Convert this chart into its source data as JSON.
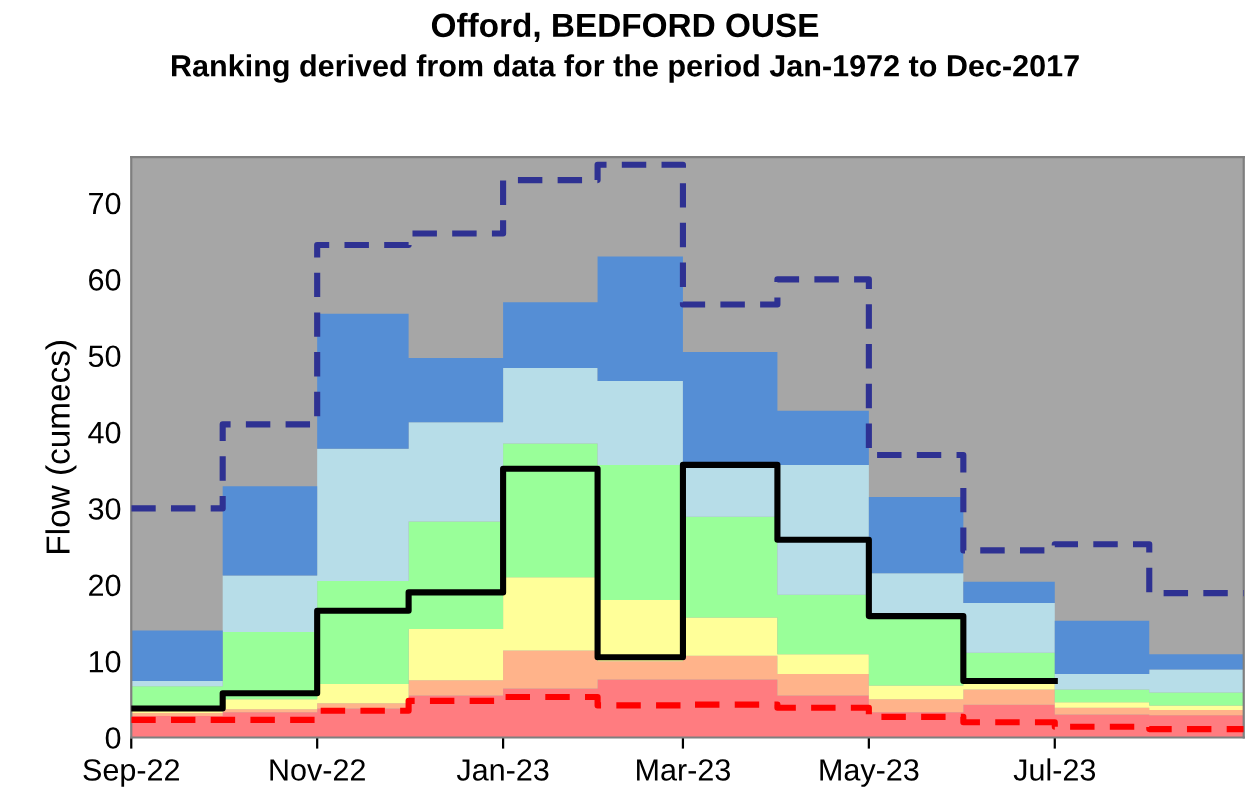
{
  "chart_data": {
    "type": "area",
    "title": "Offord, BEDFORD OUSE",
    "subtitle": "Ranking derived from data for the period Jan-1972 to Dec-2017",
    "ylabel": "Flow (cumecs)",
    "stacked": true,
    "x": [
      "2022-09",
      "2022-10",
      "2022-11",
      "2022-12",
      "2023-01",
      "2023-02",
      "2023-03",
      "2023-04",
      "2023-05",
      "2023-06",
      "2023-07",
      "2023-08",
      "2023-09"
    ],
    "series": [
      {
        "color": "#ff7c80",
        "values": [
          2.8,
          3.3,
          3.8,
          5.5,
          6.4,
          7.6,
          7.6,
          5.5,
          3.3,
          4.3,
          3.0,
          2.9,
          2.9
        ]
      },
      {
        "color": "#ffb38a",
        "values": [
          0.4,
          0.4,
          0.7,
          2.0,
          5.0,
          2.4,
          3.1,
          2.8,
          1.7,
          2.0,
          0.9,
          0.7,
          0.7
        ]
      },
      {
        "color": "#ffff99",
        "values": [
          0.4,
          1.3,
          2.5,
          6.7,
          9.6,
          8.0,
          5.0,
          2.6,
          1.8,
          1.3,
          0.7,
          0.6,
          0.6
        ]
      },
      {
        "color": "#99ff99",
        "values": [
          3.1,
          8.8,
          13.5,
          14.1,
          17.5,
          17.7,
          13.2,
          7.8,
          9.1,
          3.5,
          1.7,
          1.7,
          1.7
        ]
      },
      {
        "color": "#b7dde8",
        "values": [
          0.7,
          7.4,
          17.3,
          13.0,
          9.9,
          11.0,
          6.8,
          17.0,
          5.6,
          6.5,
          2.0,
          3.0,
          3.0
        ]
      },
      {
        "color": "#558ed5",
        "values": [
          6.6,
          11.7,
          17.7,
          8.4,
          8.6,
          16.3,
          14.8,
          7.1,
          10.0,
          2.8,
          7.0,
          2.0,
          2.0
        ]
      },
      {
        "type": "step",
        "color": "#000000",
        "line_style": "solid",
        "x": [
          "2022-09",
          "2022-10",
          "2022-11",
          "2022-12",
          "2023-01",
          "2023-02",
          "2023-03",
          "2023-04",
          "2023-05",
          "2023-06",
          "2023-07"
        ],
        "values": [
          3.8,
          5.8,
          16.6,
          19.0,
          35.2,
          10.5,
          35.7,
          25.9,
          15.9,
          7.4,
          7.4
        ]
      },
      {
        "type": "step",
        "color": "#ff0000",
        "line_style": "dashed",
        "values": [
          2.3,
          2.3,
          3.5,
          4.8,
          5.3,
          4.2,
          4.3,
          3.9,
          2.7,
          2.0,
          1.4,
          1.1,
          1.1
        ]
      },
      {
        "type": "step",
        "color": "#2e3192",
        "line_style": "dashed",
        "values": [
          30,
          41,
          64.5,
          66,
          73,
          75,
          56.7,
          60,
          37,
          24.5,
          25.3,
          18.9,
          18.9
        ]
      }
    ],
    "bands": [
      {
        "axis": "y",
        "from": 0,
        "to": 76,
        "color": "#a6a6a6"
      }
    ],
    "xlim": [
      "2022-09",
      "2023-09"
    ],
    "xticks": [
      {
        "value": "2022-09",
        "label": "Sep-22"
      },
      {
        "value": "2022-11",
        "label": "Nov-22"
      },
      {
        "value": "2023-01",
        "label": "Jan-23"
      },
      {
        "value": "2023-03",
        "label": "Mar-23"
      },
      {
        "value": "2023-05",
        "label": "May-23"
      },
      {
        "value": "2023-07",
        "label": "Jul-23"
      }
    ],
    "ylim": [
      0,
      76
    ],
    "yticks": [
      0,
      10,
      20,
      30,
      40,
      50,
      60,
      70
    ],
    "grid": false,
    "legend": false
  }
}
